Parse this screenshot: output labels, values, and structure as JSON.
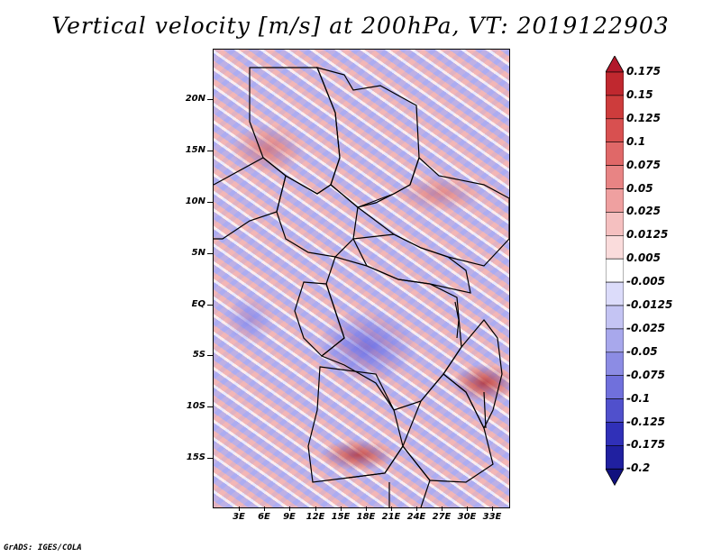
{
  "title": "Vertical velocity [m/s] at 200hPa, VT: 2019122903",
  "credit": "GrADS: IGES/COLA",
  "map": {
    "y_labels": [
      "20N",
      "15N",
      "10N",
      "5N",
      "EQ",
      "5S",
      "10S",
      "15S"
    ],
    "x_labels": [
      "3E",
      "6E",
      "9E",
      "12E",
      "15E",
      "18E",
      "21E",
      "24E",
      "27E",
      "30E",
      "33E"
    ]
  },
  "colorbar": {
    "labels": [
      "0.175",
      "0.15",
      "0.125",
      "0.1",
      "0.075",
      "0.05",
      "0.025",
      "0.0125",
      "0.005",
      "-0.005",
      "-0.0125",
      "-0.025",
      "-0.05",
      "-0.075",
      "-0.1",
      "-0.125",
      "-0.175",
      "-0.2"
    ],
    "colors": [
      "#b2182b",
      "#c0282f",
      "#cd3c3c",
      "#d85050",
      "#e06868",
      "#e88484",
      "#efa0a0",
      "#f5c0c0",
      "#fadcdc",
      "#ffffff",
      "#dcdcfa",
      "#c4c4f3",
      "#a8a8ec",
      "#8c8ce4",
      "#7070dc",
      "#5050cc",
      "#3030b8",
      "#2020a0",
      "#10107e"
    ]
  }
}
